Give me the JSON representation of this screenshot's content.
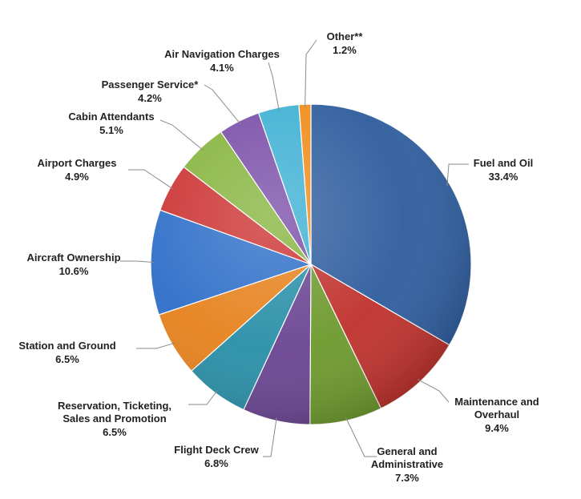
{
  "chart_data": {
    "type": "pie",
    "title": "",
    "start": "12 o'clock",
    "direction": "clockwise",
    "slices": [
      {
        "label": "Fuel and Oil",
        "lines": [
          "Fuel and Oil"
        ],
        "value": 33.4,
        "value_text": "33.4%",
        "color": "#2f5e9e"
      },
      {
        "label": "Maintenance and Overhaul",
        "lines": [
          "Maintenance and",
          "Overhaul"
        ],
        "value": 9.4,
        "value_text": "9.4%",
        "color": "#c0332e"
      },
      {
        "label": "General and Administrative",
        "lines": [
          "General and",
          "Administrative"
        ],
        "value": 7.3,
        "value_text": "7.3%",
        "color": "#6e9a2e"
      },
      {
        "label": "Flight Deck Crew",
        "lines": [
          "Flight Deck Crew"
        ],
        "value": 6.8,
        "value_text": "6.8%",
        "color": "#6b4592"
      },
      {
        "label": "Reservation, Ticketing, Sales and Promotion",
        "lines": [
          "Reservation, Ticketing,",
          "Sales and Promotion"
        ],
        "value": 6.5,
        "value_text": "6.5%",
        "color": "#2a8fa8"
      },
      {
        "label": "Station and Ground",
        "lines": [
          "Station and Ground"
        ],
        "value": 6.5,
        "value_text": "6.5%",
        "color": "#e6821e"
      },
      {
        "label": "Aircraft Ownership",
        "lines": [
          "Aircraft Ownership"
        ],
        "value": 10.6,
        "value_text": "10.6%",
        "color": "#2f6fc8"
      },
      {
        "label": "Airport Charges",
        "lines": [
          "Airport Charges"
        ],
        "value": 4.9,
        "value_text": "4.9%",
        "color": "#cc3433"
      },
      {
        "label": "Cabin Attendants",
        "lines": [
          "Cabin Attendants"
        ],
        "value": 5.1,
        "value_text": "5.1%",
        "color": "#86b53f"
      },
      {
        "label": "Passenger Service*",
        "lines": [
          "Passenger Service*"
        ],
        "value": 4.2,
        "value_text": "4.2%",
        "color": "#7b4fa8"
      },
      {
        "label": "Air Navigation Charges",
        "lines": [
          "Air Navigation Charges"
        ],
        "value": 4.1,
        "value_text": "4.1%",
        "color": "#3fb1d3"
      },
      {
        "label": "Other**",
        "lines": [
          "Other**"
        ],
        "value": 1.2,
        "value_text": "1.2%",
        "color": "#f08c1a"
      }
    ]
  }
}
